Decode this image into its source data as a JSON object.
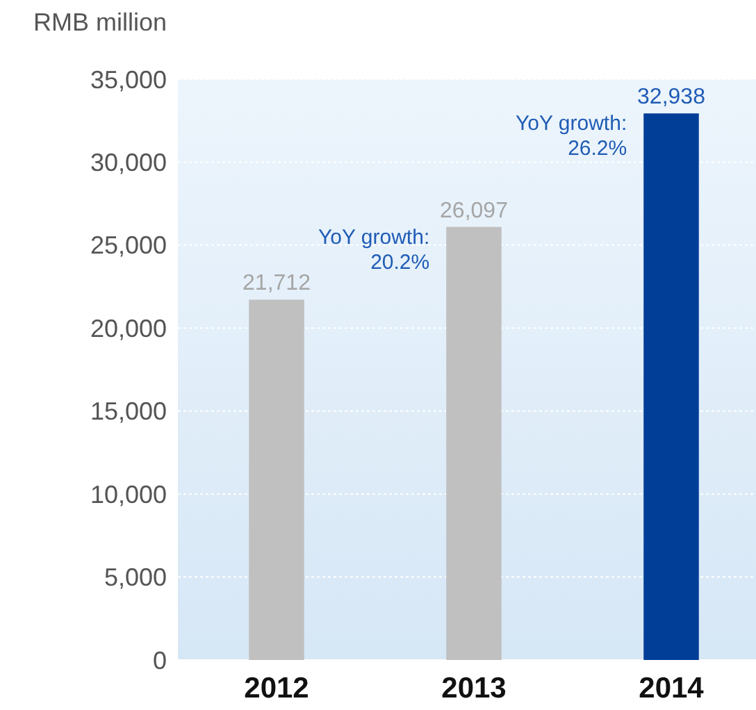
{
  "chart_data": {
    "type": "bar",
    "ylabel": "RMB million",
    "categories": [
      "2012",
      "2013",
      "2014"
    ],
    "values": [
      21712,
      26097,
      32938
    ],
    "colors": [
      "#c0c0c0",
      "#c0c0c0",
      "#003e98"
    ],
    "value_labels": [
      "21,712",
      "26,097",
      "32,938"
    ],
    "ylim": [
      0,
      35000
    ],
    "yticks": [
      {
        "value": 0,
        "label": "0"
      },
      {
        "value": 5000,
        "label": "5,000"
      },
      {
        "value": 10000,
        "label": "10,000"
      },
      {
        "value": 15000,
        "label": "15,000"
      },
      {
        "value": 20000,
        "label": "20,000"
      },
      {
        "value": 25000,
        "label": "25,000"
      },
      {
        "value": 30000,
        "label": "30,000"
      },
      {
        "value": 35000,
        "label": "35,000"
      }
    ],
    "grid": "y",
    "annotations": [
      {
        "text": "YoY growth: 20.2%",
        "x": "2013",
        "y": 26097
      },
      {
        "text": "YoY growth: 26.2%",
        "x": "2014",
        "y": 32938
      }
    ]
  }
}
